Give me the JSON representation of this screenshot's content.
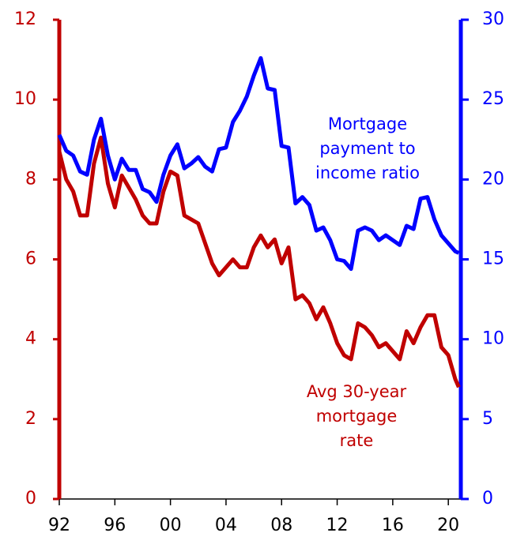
{
  "chart_data": {
    "type": "line",
    "x": [
      1992,
      1992.5,
      1993,
      1993.5,
      1994,
      1994.5,
      1995,
      1995.5,
      1996,
      1996.5,
      1997,
      1997.5,
      1998,
      1998.5,
      1999,
      1999.5,
      2000,
      2000.5,
      2001,
      2001.5,
      2002,
      2002.5,
      2003,
      2003.5,
      2004,
      2004.5,
      2005,
      2005.5,
      2006,
      2006.5,
      2007,
      2007.5,
      2008,
      2008.5,
      2009,
      2009.5,
      2010,
      2010.5,
      2011,
      2011.5,
      2012,
      2012.5,
      2013,
      2013.5,
      2014,
      2014.5,
      2015,
      2015.5,
      2016,
      2016.5,
      2017,
      2017.5,
      2018,
      2018.5,
      2019,
      2019.5,
      2020,
      2020.5,
      2020.75
    ],
    "series": [
      {
        "name": "Avg 30-year mortgage rate",
        "color": "#c00000",
        "axis": "y",
        "values": [
          8.7,
          8.0,
          7.7,
          7.1,
          7.1,
          8.4,
          9.05,
          7.9,
          7.3,
          8.1,
          7.8,
          7.5,
          7.1,
          6.9,
          6.9,
          7.7,
          8.2,
          8.1,
          7.1,
          7.0,
          6.9,
          6.4,
          5.9,
          5.6,
          5.8,
          6.0,
          5.8,
          5.8,
          6.3,
          6.6,
          6.3,
          6.5,
          5.9,
          6.3,
          5.0,
          5.1,
          4.9,
          4.5,
          4.8,
          4.4,
          3.9,
          3.6,
          3.5,
          4.4,
          4.3,
          4.1,
          3.8,
          3.9,
          3.7,
          3.5,
          4.2,
          3.9,
          4.3,
          4.6,
          4.6,
          3.8,
          3.6,
          3.0,
          2.8
        ]
      },
      {
        "name": "Mortgage payment to income ratio",
        "color": "#0000ff",
        "axis": "y2",
        "values": [
          22.8,
          21.8,
          21.5,
          20.5,
          20.3,
          22.5,
          23.8,
          21.5,
          20.0,
          21.3,
          20.6,
          20.6,
          19.4,
          19.2,
          18.6,
          20.3,
          21.5,
          22.2,
          20.7,
          21.0,
          21.4,
          20.8,
          20.5,
          21.9,
          22.0,
          23.6,
          24.3,
          25.2,
          26.5,
          27.6,
          25.7,
          25.6,
          22.1,
          22.0,
          18.5,
          18.9,
          18.4,
          16.8,
          17.0,
          16.2,
          15.0,
          14.9,
          14.4,
          16.8,
          17.0,
          16.8,
          16.2,
          16.5,
          16.2,
          15.9,
          17.1,
          16.9,
          18.8,
          18.9,
          17.5,
          16.5,
          16.0,
          15.5,
          15.4
        ]
      }
    ],
    "annotations": [
      {
        "lines": [
          "Mortgage",
          "payment to",
          "income ratio"
        ],
        "color": "#0000ff"
      },
      {
        "lines": [
          "Avg 30-year",
          "mortgage",
          "rate"
        ],
        "color": "#c00000"
      }
    ],
    "xlim": [
      1992,
      2020.9
    ],
    "xticks": [
      {
        "value": 1992,
        "label": "92"
      },
      {
        "value": 1996,
        "label": "96"
      },
      {
        "value": 2000,
        "label": "00"
      },
      {
        "value": 2004,
        "label": "04"
      },
      {
        "value": 2008,
        "label": "08"
      },
      {
        "value": 2012,
        "label": "12"
      },
      {
        "value": 2016,
        "label": "16"
      },
      {
        "value": 2020,
        "label": "20"
      }
    ],
    "ylim": [
      0,
      12
    ],
    "yticks": [
      0,
      2,
      4,
      6,
      8,
      10,
      12
    ],
    "ycolor": "#c00000",
    "y2lim": [
      0,
      30
    ],
    "y2ticks": [
      0,
      5,
      10,
      15,
      20,
      25,
      30
    ],
    "y2color": "#0000ff"
  }
}
